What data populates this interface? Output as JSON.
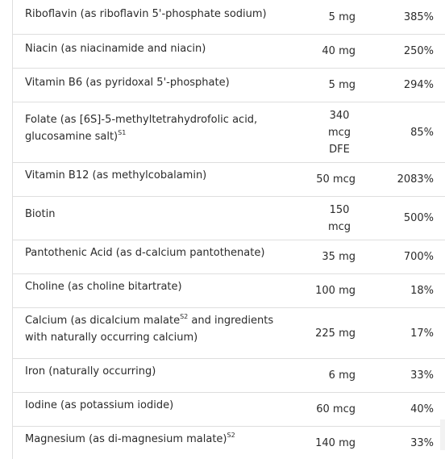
{
  "rows": [
    {
      "name": "Riboflavin (as riboflavin 5'-phosphate sodium)",
      "sup": "",
      "name_rest": "",
      "amount": "5 mg",
      "dv": "385%"
    },
    {
      "name": "Niacin (as niacinamide and niacin)",
      "sup": "",
      "name_rest": "",
      "amount": "40 mg",
      "dv": "250%"
    },
    {
      "name": "Vitamin B6 (as pyridoxal 5'-phosphate)",
      "sup": "",
      "name_rest": "",
      "amount": "5 mg",
      "dv": "294%"
    },
    {
      "name": "Folate (as [6S]-5-methyltetrahydrofolic acid, glucosamine salt)",
      "sup": "S1",
      "name_rest": "",
      "amount": "340 mcg DFE",
      "dv": "85%"
    },
    {
      "name": "Vitamin B12 (as methylcobalamin)",
      "sup": "",
      "name_rest": "",
      "amount": "50 mcg",
      "dv": "2083%"
    },
    {
      "name": "Biotin",
      "sup": "",
      "name_rest": "",
      "amount": "150 mcg",
      "dv": "500%"
    },
    {
      "name": "Pantothenic Acid (as d-calcium pantothenate)",
      "sup": "",
      "name_rest": "",
      "amount": "35 mg",
      "dv": "700%"
    },
    {
      "name": "Choline (as choline bitartrate)",
      "sup": "",
      "name_rest": "",
      "amount": "100 mg",
      "dv": "18%"
    },
    {
      "name": "Calcium (as dicalcium malate",
      "sup": "S2",
      "name_rest": " and ingredients with naturally occurring calcium)",
      "amount": "225 mg",
      "dv": "17%"
    },
    {
      "name": "Iron (naturally occurring)",
      "sup": "",
      "name_rest": "",
      "amount": "6 mg",
      "dv": "33%"
    },
    {
      "name": "Iodine (as potassium iodide)",
      "sup": "",
      "name_rest": "",
      "amount": "60 mcg",
      "dv": "40%"
    },
    {
      "name": "Magnesium (as di-magnesium malate)",
      "sup": "S2",
      "name_rest": "",
      "amount": "140 mg",
      "dv": "33%"
    }
  ]
}
